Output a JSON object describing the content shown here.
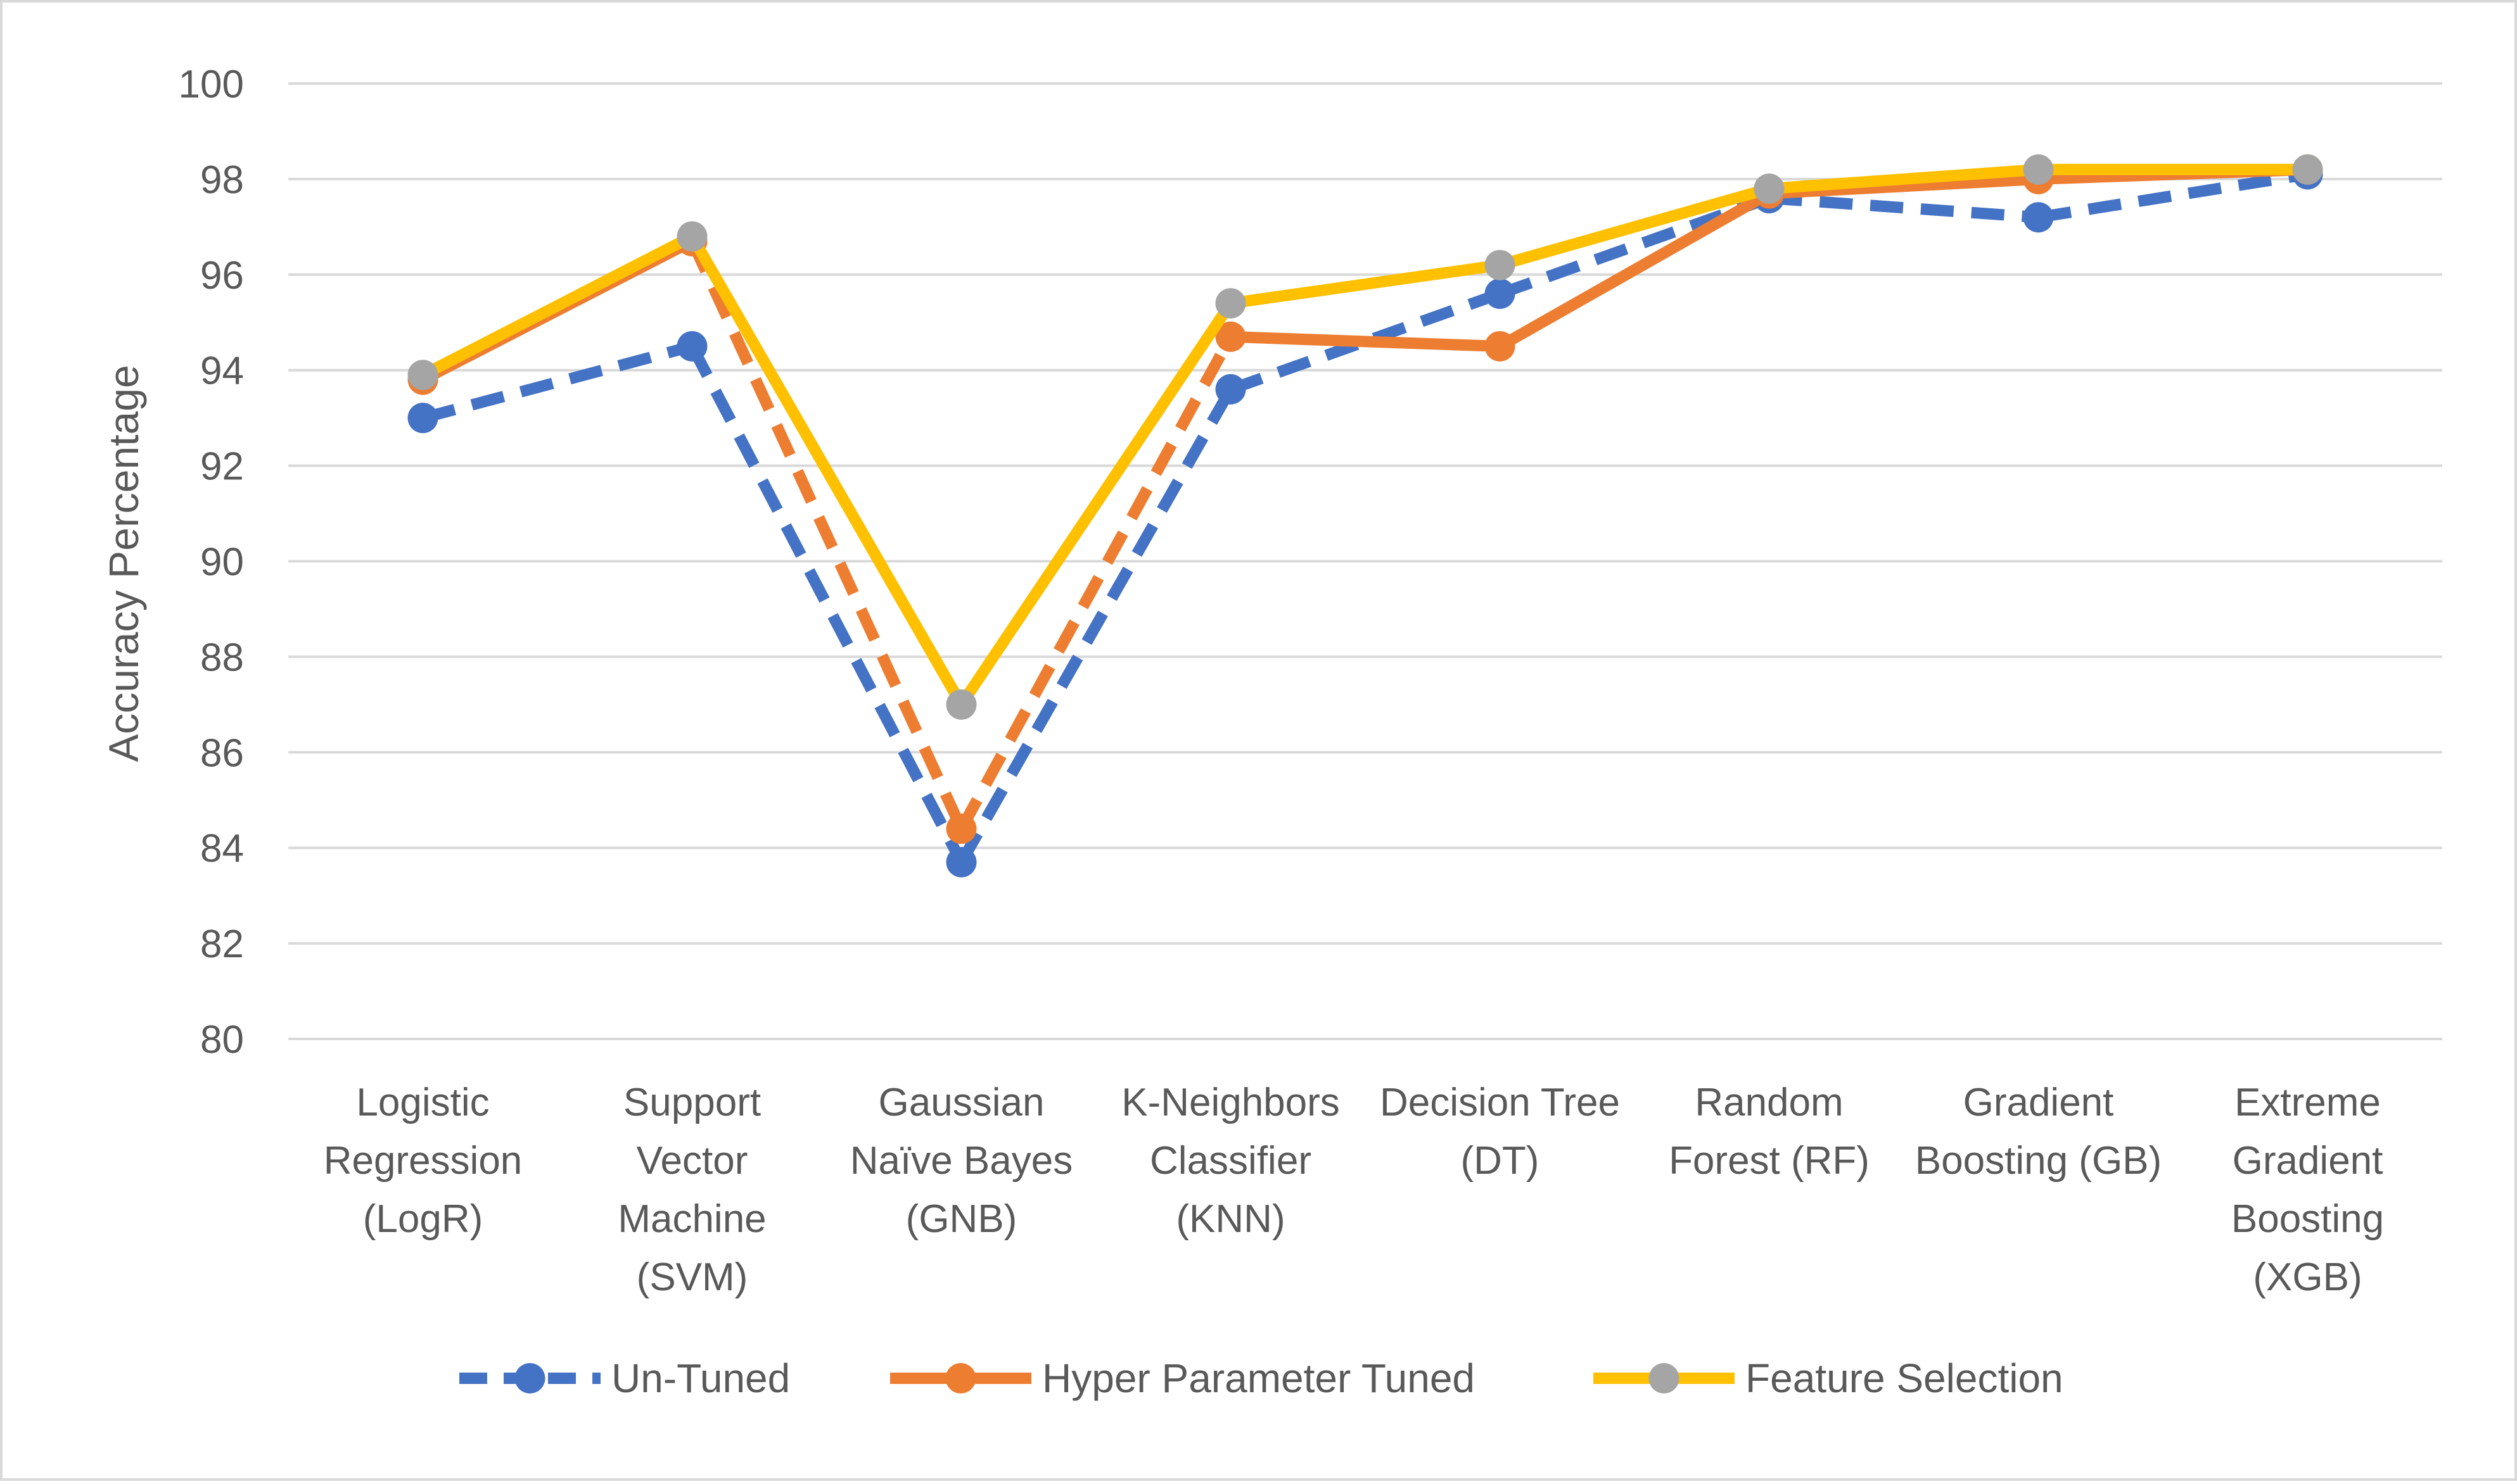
{
  "chart_data": {
    "type": "line",
    "title": "",
    "xlabel": "",
    "ylabel": "Accuracy Percentage",
    "ylim": [
      80,
      100
    ],
    "yticks": [
      80,
      82,
      84,
      86,
      88,
      90,
      92,
      94,
      96,
      98,
      100
    ],
    "grid": true,
    "legend_position": "bottom",
    "categories": [
      [
        "Logistic",
        "Regression",
        "(LogR)"
      ],
      [
        "Support",
        "Vector",
        "Machine",
        "(SVM)"
      ],
      [
        "Gaussian",
        "Naïve Bayes",
        "(GNB)"
      ],
      [
        "K-Neighbors",
        "Classifier",
        "(KNN)"
      ],
      [
        "Decision Tree",
        "(DT)"
      ],
      [
        "Random",
        "Forest (RF)"
      ],
      [
        "Gradient",
        "Boosting (GB)"
      ],
      [
        "Extreme",
        "Gradient",
        "Boosting",
        "(XGB)"
      ]
    ],
    "series": [
      {
        "name": "Un-Tuned",
        "color": "#4472C4",
        "dash": "dashed",
        "values": [
          93.0,
          94.5,
          83.7,
          93.6,
          95.6,
          97.6,
          97.2,
          98.1
        ]
      },
      {
        "name": "Hyper Parameter Tuned",
        "color": "#ED7D31",
        "dash": "mixed",
        "values": [
          93.8,
          96.7,
          84.4,
          94.7,
          94.5,
          97.7,
          98.0,
          98.2
        ]
      },
      {
        "name": "Feature Selection",
        "color": "#FFC000",
        "marker_color": "#A5A5A5",
        "dash": "solid",
        "values": [
          93.9,
          96.8,
          87.0,
          95.4,
          96.2,
          97.8,
          98.2,
          98.2
        ]
      }
    ]
  }
}
